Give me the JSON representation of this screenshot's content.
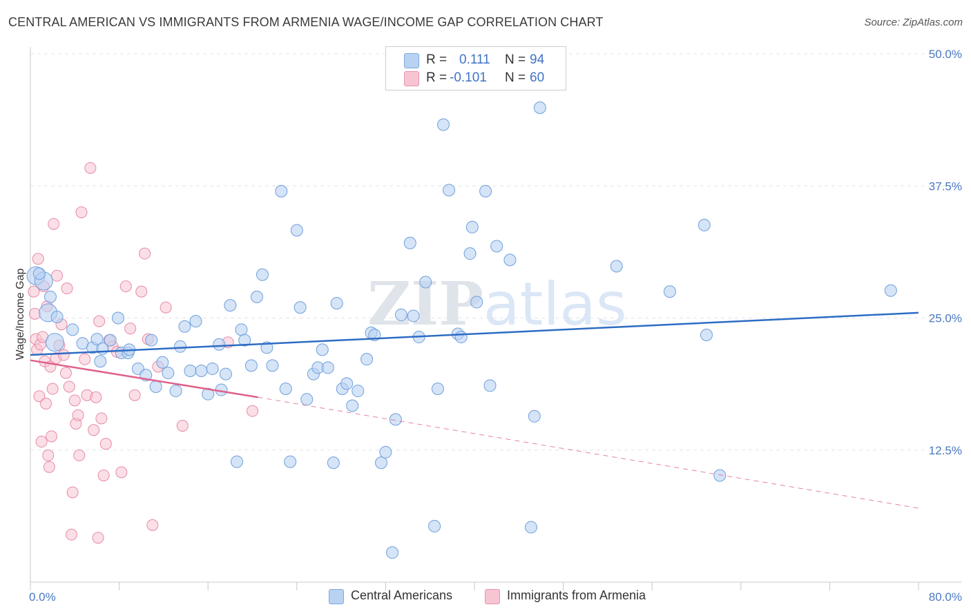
{
  "title": "CENTRAL AMERICAN VS IMMIGRANTS FROM ARMENIA WAGE/INCOME GAP CORRELATION CHART",
  "source": "Source: ZipAtlas.com",
  "watermark": "ZIPatlas",
  "legend": {
    "rows": [
      {
        "r_label": "R =",
        "r_value": "0.111",
        "n_label": "N =",
        "n_value": "94",
        "color": "#a8c8f0"
      },
      {
        "r_label": "R =",
        "r_value": "-0.101",
        "n_label": "N =",
        "n_value": "60",
        "color": "#f6b8c8"
      }
    ]
  },
  "bottom_legend": [
    {
      "label": "Central Americans",
      "color": "#a8c8f0"
    },
    {
      "label": "Immigrants from Armenia",
      "color": "#f6b8c8"
    }
  ],
  "colors": {
    "blue_fill": "#b9d2f2",
    "blue_stroke": "#6f9fdc",
    "blue_line": "#2d6cc4",
    "pink_fill": "#f7c4d2",
    "pink_stroke": "#e78aa6",
    "pink_line": "#e0608c",
    "grid": "#e3e3e3",
    "axis": "#c8c8c8",
    "tick_text": "#4a78c2"
  },
  "chart_data": {
    "type": "scatter",
    "ylabel": "Wage/Income Gap",
    "xlim": [
      0,
      80
    ],
    "ylim": [
      0,
      50
    ],
    "x_tick_labels": [
      "0.0%",
      "80.0%"
    ],
    "y_ticks": [
      12.5,
      25.0,
      37.5,
      50.0
    ],
    "y_tick_labels": [
      "12.5%",
      "25.0%",
      "37.5%",
      "50.0%"
    ],
    "grid": true,
    "legend_position": "top-center",
    "series": [
      {
        "name": "Central Americans",
        "trend": {
          "x0": 0,
          "y0": 21.5,
          "x1": 80,
          "y1": 25.5
        },
        "points": [
          [
            0.5,
            29.0,
            1
          ],
          [
            1.2,
            28.5,
            1
          ],
          [
            1.6,
            25.5,
            1
          ],
          [
            2.4,
            25.1,
            0
          ],
          [
            2.2,
            22.7,
            1
          ],
          [
            3.8,
            23.9,
            0
          ],
          [
            4.7,
            22.6,
            0
          ],
          [
            5.6,
            22.2,
            0
          ],
          [
            6.0,
            23.0,
            0
          ],
          [
            6.5,
            22.1,
            0
          ],
          [
            6.3,
            20.9,
            0
          ],
          [
            7.2,
            22.9,
            0
          ],
          [
            7.9,
            25.0,
            0
          ],
          [
            8.2,
            21.7,
            0
          ],
          [
            8.8,
            21.7,
            0
          ],
          [
            8.9,
            22.0,
            0
          ],
          [
            9.7,
            20.2,
            0
          ],
          [
            10.4,
            19.6,
            0
          ],
          [
            10.9,
            22.9,
            0
          ],
          [
            11.3,
            18.5,
            0
          ],
          [
            11.9,
            20.8,
            0
          ],
          [
            12.4,
            19.8,
            0
          ],
          [
            13.1,
            18.1,
            0
          ],
          [
            13.5,
            22.3,
            0
          ],
          [
            13.9,
            24.2,
            0
          ],
          [
            14.4,
            20.0,
            0
          ],
          [
            14.9,
            24.7,
            0
          ],
          [
            15.4,
            20.0,
            0
          ],
          [
            16.4,
            20.2,
            0
          ],
          [
            16.0,
            17.8,
            0
          ],
          [
            17.2,
            18.2,
            0
          ],
          [
            17.6,
            19.7,
            0
          ],
          [
            17.0,
            22.5,
            0
          ],
          [
            18.0,
            26.2,
            0
          ],
          [
            18.6,
            11.4,
            0
          ],
          [
            19.0,
            23.9,
            0
          ],
          [
            19.3,
            22.9,
            0
          ],
          [
            19.9,
            20.5,
            0
          ],
          [
            20.4,
            27.0,
            0
          ],
          [
            20.9,
            29.1,
            0
          ],
          [
            21.3,
            22.2,
            0
          ],
          [
            21.8,
            20.5,
            0
          ],
          [
            22.6,
            37.0,
            0
          ],
          [
            23.0,
            18.3,
            0
          ],
          [
            23.4,
            11.4,
            0
          ],
          [
            24.0,
            33.3,
            0
          ],
          [
            24.3,
            26.0,
            0
          ],
          [
            24.9,
            17.3,
            0
          ],
          [
            25.5,
            19.7,
            0
          ],
          [
            25.9,
            20.3,
            0
          ],
          [
            26.3,
            22.0,
            0
          ],
          [
            26.8,
            20.3,
            0
          ],
          [
            27.3,
            11.3,
            0
          ],
          [
            27.6,
            26.4,
            0
          ],
          [
            28.1,
            18.3,
            0
          ],
          [
            28.5,
            18.8,
            0
          ],
          [
            29.0,
            16.7,
            0
          ],
          [
            29.5,
            18.1,
            0
          ],
          [
            30.3,
            21.1,
            0
          ],
          [
            30.7,
            23.6,
            0
          ],
          [
            31.0,
            23.4,
            0
          ],
          [
            31.6,
            11.3,
            0
          ],
          [
            32.0,
            12.3,
            0
          ],
          [
            32.6,
            2.8,
            0
          ],
          [
            32.9,
            15.4,
            0
          ],
          [
            33.4,
            25.3,
            0
          ],
          [
            34.2,
            32.1,
            0
          ],
          [
            34.5,
            25.2,
            0
          ],
          [
            35.0,
            23.2,
            0
          ],
          [
            35.6,
            28.4,
            0
          ],
          [
            36.4,
            5.3,
            0
          ],
          [
            36.7,
            18.3,
            0
          ],
          [
            37.2,
            43.3,
            0
          ],
          [
            37.7,
            37.1,
            0
          ],
          [
            38.5,
            23.5,
            0
          ],
          [
            38.8,
            23.2,
            0
          ],
          [
            39.6,
            31.1,
            0
          ],
          [
            39.8,
            33.6,
            0
          ],
          [
            40.2,
            26.5,
            0
          ],
          [
            41.0,
            37.0,
            0
          ],
          [
            41.4,
            18.6,
            0
          ],
          [
            42.0,
            31.8,
            0
          ],
          [
            43.2,
            30.5,
            0
          ],
          [
            45.1,
            5.2,
            0
          ],
          [
            45.4,
            15.7,
            0
          ],
          [
            45.9,
            44.9,
            0
          ],
          [
            52.8,
            29.9,
            0
          ],
          [
            57.6,
            27.5,
            0
          ],
          [
            60.7,
            33.8,
            0
          ],
          [
            60.9,
            23.4,
            0
          ],
          [
            62.1,
            10.1,
            0
          ],
          [
            77.5,
            27.6,
            0
          ],
          [
            0.8,
            29.2,
            0
          ],
          [
            1.8,
            27.0,
            0
          ]
        ]
      },
      {
        "name": "Immigrants from Armenia",
        "trend": {
          "x0": 0,
          "y0": 21.0,
          "x1": 20.5,
          "y1": 17.5,
          "x2": 80,
          "y2": 7.0
        },
        "points": [
          [
            0.3,
            27.5
          ],
          [
            0.4,
            25.4
          ],
          [
            0.5,
            23.0
          ],
          [
            0.6,
            22.0
          ],
          [
            0.7,
            30.6
          ],
          [
            0.8,
            17.6
          ],
          [
            0.9,
            22.5
          ],
          [
            1.0,
            13.3
          ],
          [
            1.1,
            23.2
          ],
          [
            1.2,
            28.0
          ],
          [
            1.3,
            20.9
          ],
          [
            1.4,
            16.9
          ],
          [
            1.5,
            26.1
          ],
          [
            1.6,
            12.0
          ],
          [
            1.7,
            10.9
          ],
          [
            1.8,
            20.4
          ],
          [
            1.9,
            13.8
          ],
          [
            2.0,
            18.3
          ],
          [
            2.1,
            33.9
          ],
          [
            2.3,
            21.2
          ],
          [
            2.4,
            29.0
          ],
          [
            2.6,
            22.4
          ],
          [
            2.8,
            24.4
          ],
          [
            3.0,
            21.5
          ],
          [
            3.2,
            19.8
          ],
          [
            3.3,
            27.8
          ],
          [
            3.5,
            18.5
          ],
          [
            3.7,
            4.5
          ],
          [
            3.8,
            8.5
          ],
          [
            4.0,
            17.2
          ],
          [
            4.1,
            15.0
          ],
          [
            4.3,
            15.8
          ],
          [
            4.4,
            12.0
          ],
          [
            4.6,
            35.0
          ],
          [
            4.9,
            21.1
          ],
          [
            5.1,
            17.7
          ],
          [
            5.4,
            39.2
          ],
          [
            5.7,
            14.4
          ],
          [
            5.9,
            17.5
          ],
          [
            6.1,
            4.2
          ],
          [
            6.2,
            24.7
          ],
          [
            6.4,
            15.5
          ],
          [
            6.6,
            10.1
          ],
          [
            6.8,
            13.1
          ],
          [
            7.1,
            22.9
          ],
          [
            7.4,
            22.3
          ],
          [
            7.8,
            21.8
          ],
          [
            8.2,
            10.4
          ],
          [
            8.6,
            28.0
          ],
          [
            9.0,
            24.0
          ],
          [
            9.4,
            17.7
          ],
          [
            10.0,
            27.5
          ],
          [
            10.3,
            31.1
          ],
          [
            10.6,
            23.0
          ],
          [
            11.0,
            5.4
          ],
          [
            11.5,
            20.4
          ],
          [
            12.2,
            26.0
          ],
          [
            13.7,
            14.8
          ],
          [
            17.8,
            22.7
          ],
          [
            20.0,
            16.2
          ]
        ]
      }
    ]
  }
}
